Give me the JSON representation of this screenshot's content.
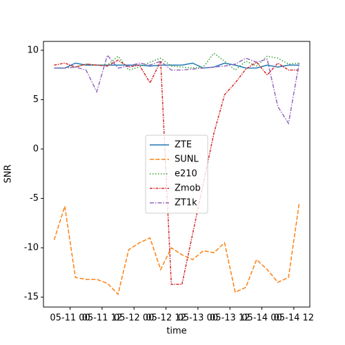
{
  "chart_data": {
    "type": "line",
    "xlabel": "time",
    "ylabel": "SNR",
    "x": [
      "05-10 18",
      "05-10 22",
      "05-11 02",
      "05-11 06",
      "05-11 10",
      "05-11 14",
      "05-11 18",
      "05-11 22",
      "05-12 02",
      "05-12 06",
      "05-12 10",
      "05-12 14",
      "05-12 18",
      "05-12 22",
      "05-13 02",
      "05-13 06",
      "05-13 10",
      "05-13 14",
      "05-13 18",
      "05-13 22",
      "05-14 02",
      "05-14 06",
      "05-14 10",
      "05-14 14"
    ],
    "series": [
      {
        "name": "ZTE",
        "color": "#1f77b4",
        "dash": "solid",
        "values": [
          8.2,
          8.2,
          8.7,
          8.5,
          8.5,
          8.5,
          8.5,
          8.5,
          8.5,
          8.4,
          8.5,
          8.5,
          8.5,
          8.7,
          8.2,
          8.3,
          8.7,
          8.5,
          8.2,
          8.2,
          8.5,
          8.3,
          8.5,
          8.5
        ]
      },
      {
        "name": "SUNL",
        "color": "#ff7f0e",
        "dash": "dashed",
        "values": [
          -9.2,
          -5.8,
          -13.0,
          -13.2,
          -13.2,
          -13.6,
          -14.7,
          -10.2,
          -9.5,
          -9.0,
          -12.2,
          -10.0,
          -10.7,
          -11.2,
          -10.3,
          -10.5,
          -9.5,
          -14.5,
          -14.0,
          -11.2,
          -12.2,
          -13.5,
          -13.0,
          -5.5
        ]
      },
      {
        "name": "e210",
        "color": "#2ca02c",
        "dash": "dotted",
        "values": [
          8.2,
          8.2,
          8.3,
          8.6,
          8.5,
          8.5,
          9.4,
          8.0,
          8.3,
          8.8,
          9.2,
          8.4,
          8.3,
          8.2,
          8.3,
          9.7,
          8.9,
          8.0,
          8.9,
          8.4,
          9.4,
          9.2,
          8.6,
          8.7
        ]
      },
      {
        "name": "Zmob",
        "color": "#d62728",
        "dash": "densedashdot",
        "values": [
          8.5,
          8.7,
          8.3,
          8.6,
          8.5,
          8.4,
          9.0,
          8.3,
          8.5,
          6.7,
          8.9,
          -13.7,
          -13.7,
          -8.6,
          -3.5,
          1.6,
          5.5,
          6.7,
          8.1,
          8.8,
          7.5,
          8.7,
          8.0,
          8.0
        ]
      },
      {
        "name": "ZT1k",
        "color": "#9467bd",
        "dash": "dashdot",
        "values": [
          8.2,
          8.2,
          8.3,
          8.0,
          5.8,
          9.5,
          8.2,
          8.4,
          8.7,
          8.5,
          8.9,
          8.0,
          8.0,
          8.1,
          8.2,
          8.3,
          8.4,
          8.6,
          9.2,
          8.8,
          9.1,
          4.3,
          2.6,
          8.7
        ]
      }
    ],
    "xlim": [
      "05-10 14",
      "05-14 18"
    ],
    "xticks": [
      {
        "value": "05-11 00",
        "label": "05-11 00"
      },
      {
        "value": "05-11 12",
        "label": "05-11 12"
      },
      {
        "value": "05-12 00",
        "label": "05-12 00"
      },
      {
        "value": "05-12 12",
        "label": "05-12 12"
      },
      {
        "value": "05-13 00",
        "label": "05-13 00"
      },
      {
        "value": "05-13 12",
        "label": "05-13 12"
      },
      {
        "value": "05-14 00",
        "label": "05-14 00"
      },
      {
        "value": "05-14 12",
        "label": "05-14 12"
      }
    ],
    "ylim": [
      -16,
      10.9
    ],
    "yticks": [
      -15,
      -10,
      -5,
      0,
      5,
      10
    ],
    "legend": "center",
    "grid": false
  }
}
